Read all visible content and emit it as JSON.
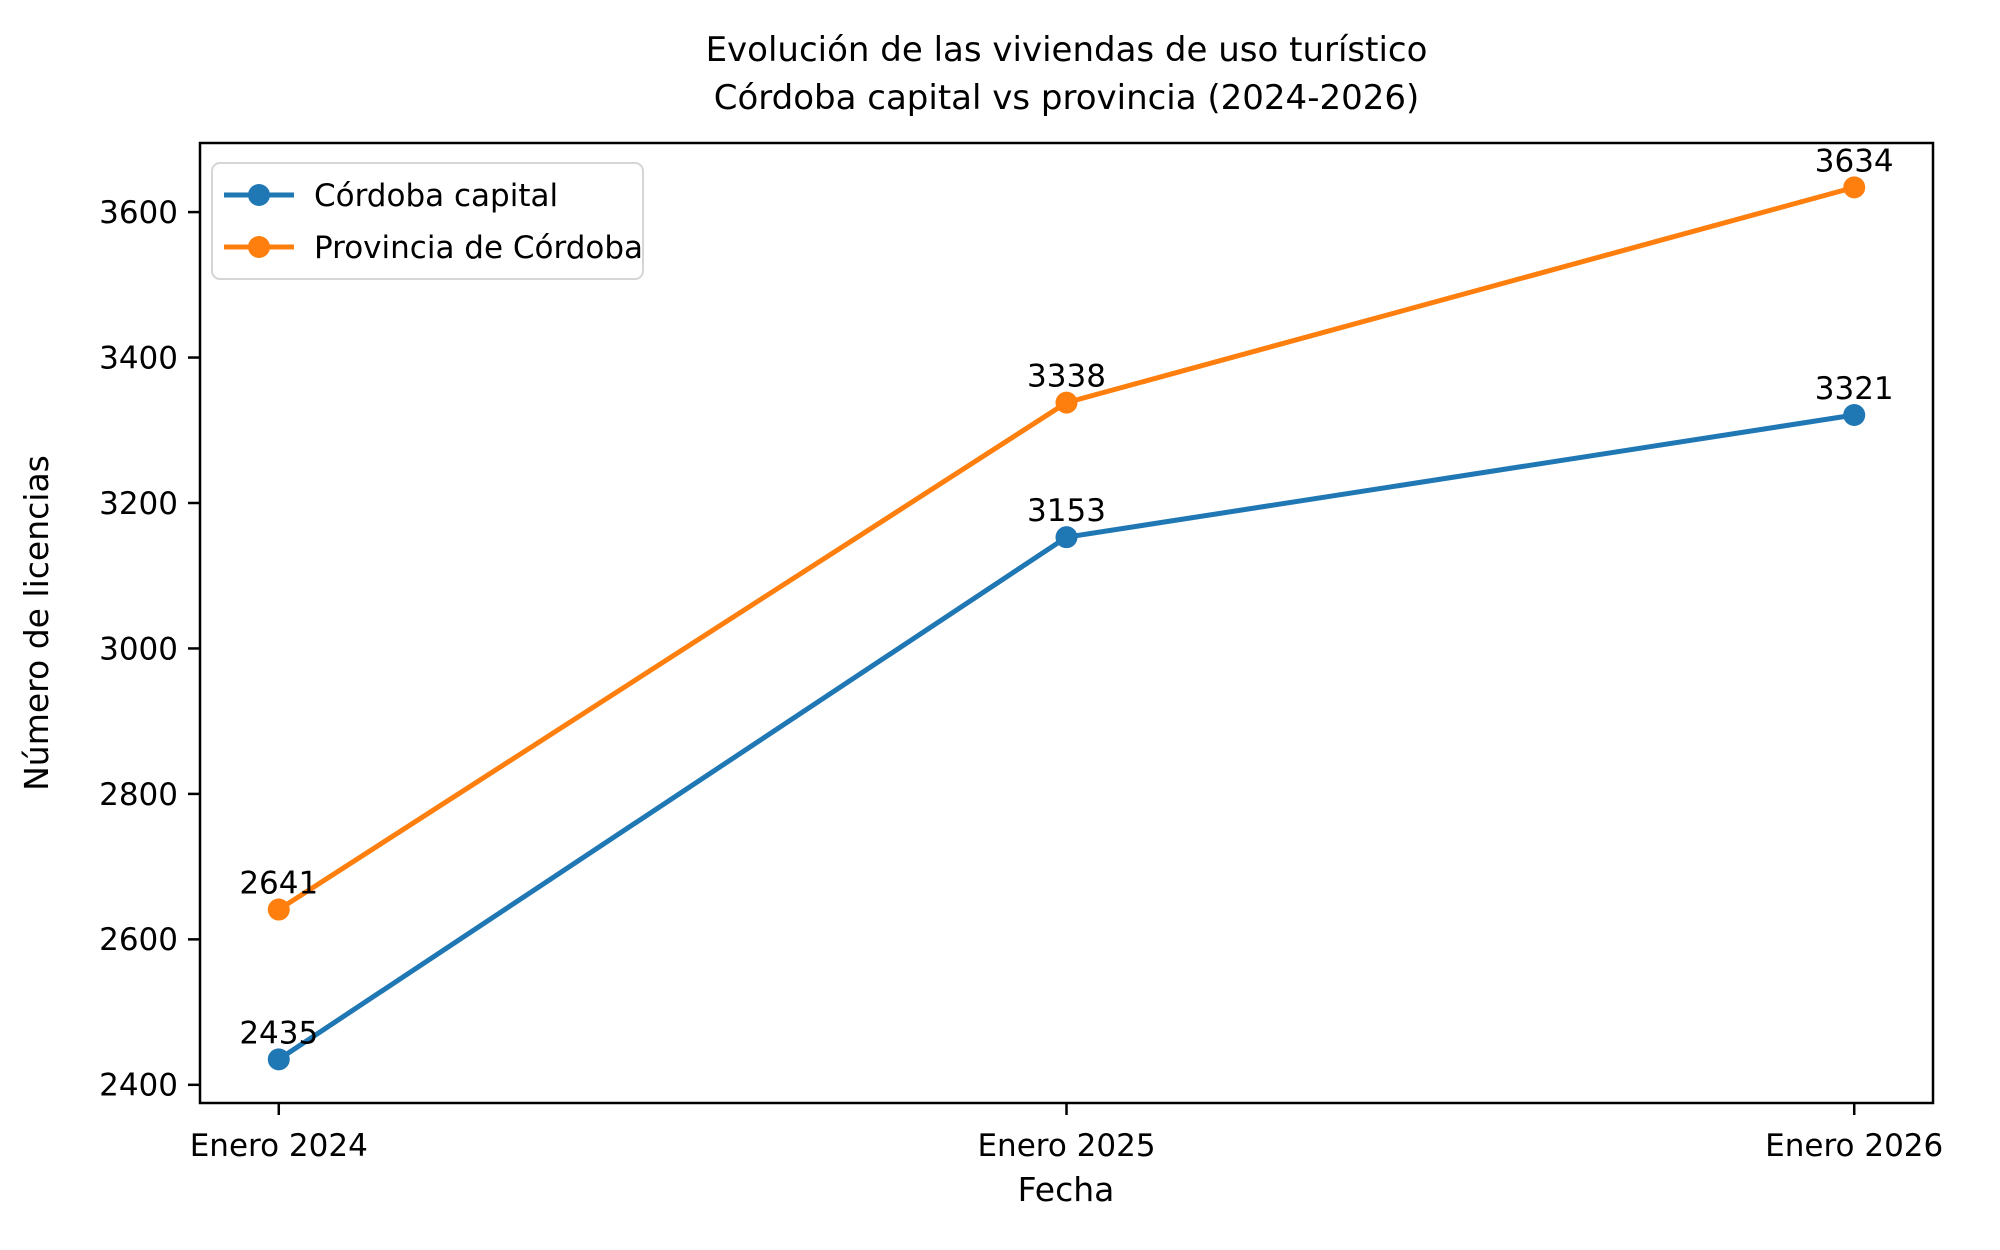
{
  "chart_data": {
    "type": "line",
    "title_lines": [
      "Evolución de las viviendas de uso turístico",
      "Córdoba capital vs provincia (2024-2026)"
    ],
    "title": "Evolución de las viviendas de uso turístico\nCórdoba capital vs provincia (2024-2026)",
    "categories": [
      "Enero 2024",
      "Enero 2025",
      "Enero 2026"
    ],
    "series": [
      {
        "name": "Córdoba capital",
        "values": [
          2435,
          3153,
          3321
        ],
        "color": "#1f77b4",
        "marker": "circle"
      },
      {
        "name": "Provincia de Córdoba",
        "values": [
          2641,
          3338,
          3634
        ],
        "color": "#ff7f0e",
        "marker": "circle"
      }
    ],
    "xlabel": "Fecha",
    "ylabel": "Número de licencias",
    "ylim": [
      2375,
      3695
    ],
    "yticks": [
      2400,
      2600,
      2800,
      3000,
      3200,
      3400,
      3600
    ],
    "x_margin_fraction": 0.05,
    "grid": false,
    "point_labels": true,
    "legend_position": "upper-left"
  },
  "style": {
    "background": "#ffffff",
    "text_color": "#000000",
    "axes_color": "#000000",
    "legend_border": "#d5d5d5",
    "legend_fill": "#ffffff"
  }
}
